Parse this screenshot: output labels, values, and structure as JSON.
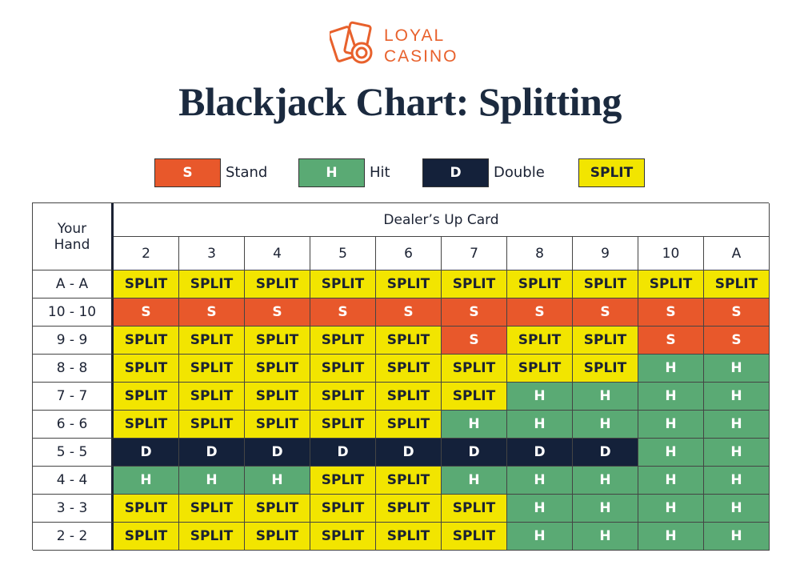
{
  "logo": {
    "line1": "LOYAL",
    "line2": "CASINO"
  },
  "title": "Blackjack Chart: Splitting",
  "legend": [
    {
      "code": "S",
      "label": "Stand",
      "color": "#e8582b",
      "text_color": "#ffffff"
    },
    {
      "code": "H",
      "label": "Hit",
      "color": "#5aaa74",
      "text_color": "#ffffff"
    },
    {
      "code": "D",
      "label": "Double",
      "color": "#14213a",
      "text_color": "#ffffff"
    },
    {
      "code": "SPLIT",
      "color": "#f2e500",
      "text_color": "#1b2233"
    }
  ],
  "table": {
    "corner_header": "Your Hand",
    "group_header": "Dealer’s Up Card",
    "columns": [
      "2",
      "3",
      "4",
      "5",
      "6",
      "7",
      "8",
      "9",
      "10",
      "A"
    ],
    "rows": [
      {
        "hand": "A - A",
        "cells": [
          "SPLIT",
          "SPLIT",
          "SPLIT",
          "SPLIT",
          "SPLIT",
          "SPLIT",
          "SPLIT",
          "SPLIT",
          "SPLIT",
          "SPLIT"
        ]
      },
      {
        "hand": "10 - 10",
        "cells": [
          "S",
          "S",
          "S",
          "S",
          "S",
          "S",
          "S",
          "S",
          "S",
          "S"
        ]
      },
      {
        "hand": "9 - 9",
        "cells": [
          "SPLIT",
          "SPLIT",
          "SPLIT",
          "SPLIT",
          "SPLIT",
          "S",
          "SPLIT",
          "SPLIT",
          "S",
          "S"
        ]
      },
      {
        "hand": "8 - 8",
        "cells": [
          "SPLIT",
          "SPLIT",
          "SPLIT",
          "SPLIT",
          "SPLIT",
          "SPLIT",
          "SPLIT",
          "SPLIT",
          "H",
          "H"
        ]
      },
      {
        "hand": "7 - 7",
        "cells": [
          "SPLIT",
          "SPLIT",
          "SPLIT",
          "SPLIT",
          "SPLIT",
          "SPLIT",
          "H",
          "H",
          "H",
          "H"
        ]
      },
      {
        "hand": "6 - 6",
        "cells": [
          "SPLIT",
          "SPLIT",
          "SPLIT",
          "SPLIT",
          "SPLIT",
          "H",
          "H",
          "H",
          "H",
          "H"
        ]
      },
      {
        "hand": "5 - 5",
        "cells": [
          "D",
          "D",
          "D",
          "D",
          "D",
          "D",
          "D",
          "D",
          "H",
          "H"
        ]
      },
      {
        "hand": "4 - 4",
        "cells": [
          "H",
          "H",
          "H",
          "SPLIT",
          "SPLIT",
          "H",
          "H",
          "H",
          "H",
          "H"
        ]
      },
      {
        "hand": "3 - 3",
        "cells": [
          "SPLIT",
          "SPLIT",
          "SPLIT",
          "SPLIT",
          "SPLIT",
          "SPLIT",
          "H",
          "H",
          "H",
          "H"
        ]
      },
      {
        "hand": "2 - 2",
        "cells": [
          "SPLIT",
          "SPLIT",
          "SPLIT",
          "SPLIT",
          "SPLIT",
          "SPLIT",
          "H",
          "H",
          "H",
          "H"
        ]
      }
    ]
  }
}
